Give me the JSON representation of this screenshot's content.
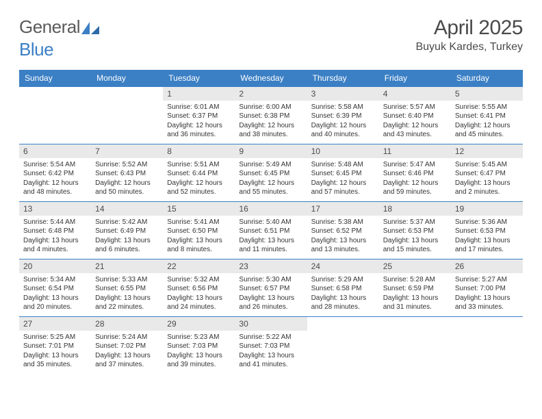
{
  "logo": {
    "word1": "General",
    "word2": "Blue"
  },
  "title": "April 2025",
  "location": "Buyuk Kardes, Turkey",
  "colors": {
    "header_bg": "#3b7fc4",
    "header_fg": "#ffffff",
    "daynum_bg": "#e9e9e9",
    "border": "#3b7fc4",
    "text": "#333333",
    "logo_gray": "#5a5a5a",
    "logo_blue": "#3b7fc4"
  },
  "weekdays": [
    "Sunday",
    "Monday",
    "Tuesday",
    "Wednesday",
    "Thursday",
    "Friday",
    "Saturday"
  ],
  "weeks": [
    [
      null,
      null,
      {
        "n": "1",
        "sr": "Sunrise: 6:01 AM",
        "ss": "Sunset: 6:37 PM",
        "dl1": "Daylight: 12 hours",
        "dl2": "and 36 minutes."
      },
      {
        "n": "2",
        "sr": "Sunrise: 6:00 AM",
        "ss": "Sunset: 6:38 PM",
        "dl1": "Daylight: 12 hours",
        "dl2": "and 38 minutes."
      },
      {
        "n": "3",
        "sr": "Sunrise: 5:58 AM",
        "ss": "Sunset: 6:39 PM",
        "dl1": "Daylight: 12 hours",
        "dl2": "and 40 minutes."
      },
      {
        "n": "4",
        "sr": "Sunrise: 5:57 AM",
        "ss": "Sunset: 6:40 PM",
        "dl1": "Daylight: 12 hours",
        "dl2": "and 43 minutes."
      },
      {
        "n": "5",
        "sr": "Sunrise: 5:55 AM",
        "ss": "Sunset: 6:41 PM",
        "dl1": "Daylight: 12 hours",
        "dl2": "and 45 minutes."
      }
    ],
    [
      {
        "n": "6",
        "sr": "Sunrise: 5:54 AM",
        "ss": "Sunset: 6:42 PM",
        "dl1": "Daylight: 12 hours",
        "dl2": "and 48 minutes."
      },
      {
        "n": "7",
        "sr": "Sunrise: 5:52 AM",
        "ss": "Sunset: 6:43 PM",
        "dl1": "Daylight: 12 hours",
        "dl2": "and 50 minutes."
      },
      {
        "n": "8",
        "sr": "Sunrise: 5:51 AM",
        "ss": "Sunset: 6:44 PM",
        "dl1": "Daylight: 12 hours",
        "dl2": "and 52 minutes."
      },
      {
        "n": "9",
        "sr": "Sunrise: 5:49 AM",
        "ss": "Sunset: 6:45 PM",
        "dl1": "Daylight: 12 hours",
        "dl2": "and 55 minutes."
      },
      {
        "n": "10",
        "sr": "Sunrise: 5:48 AM",
        "ss": "Sunset: 6:45 PM",
        "dl1": "Daylight: 12 hours",
        "dl2": "and 57 minutes."
      },
      {
        "n": "11",
        "sr": "Sunrise: 5:47 AM",
        "ss": "Sunset: 6:46 PM",
        "dl1": "Daylight: 12 hours",
        "dl2": "and 59 minutes."
      },
      {
        "n": "12",
        "sr": "Sunrise: 5:45 AM",
        "ss": "Sunset: 6:47 PM",
        "dl1": "Daylight: 13 hours",
        "dl2": "and 2 minutes."
      }
    ],
    [
      {
        "n": "13",
        "sr": "Sunrise: 5:44 AM",
        "ss": "Sunset: 6:48 PM",
        "dl1": "Daylight: 13 hours",
        "dl2": "and 4 minutes."
      },
      {
        "n": "14",
        "sr": "Sunrise: 5:42 AM",
        "ss": "Sunset: 6:49 PM",
        "dl1": "Daylight: 13 hours",
        "dl2": "and 6 minutes."
      },
      {
        "n": "15",
        "sr": "Sunrise: 5:41 AM",
        "ss": "Sunset: 6:50 PM",
        "dl1": "Daylight: 13 hours",
        "dl2": "and 8 minutes."
      },
      {
        "n": "16",
        "sr": "Sunrise: 5:40 AM",
        "ss": "Sunset: 6:51 PM",
        "dl1": "Daylight: 13 hours",
        "dl2": "and 11 minutes."
      },
      {
        "n": "17",
        "sr": "Sunrise: 5:38 AM",
        "ss": "Sunset: 6:52 PM",
        "dl1": "Daylight: 13 hours",
        "dl2": "and 13 minutes."
      },
      {
        "n": "18",
        "sr": "Sunrise: 5:37 AM",
        "ss": "Sunset: 6:53 PM",
        "dl1": "Daylight: 13 hours",
        "dl2": "and 15 minutes."
      },
      {
        "n": "19",
        "sr": "Sunrise: 5:36 AM",
        "ss": "Sunset: 6:53 PM",
        "dl1": "Daylight: 13 hours",
        "dl2": "and 17 minutes."
      }
    ],
    [
      {
        "n": "20",
        "sr": "Sunrise: 5:34 AM",
        "ss": "Sunset: 6:54 PM",
        "dl1": "Daylight: 13 hours",
        "dl2": "and 20 minutes."
      },
      {
        "n": "21",
        "sr": "Sunrise: 5:33 AM",
        "ss": "Sunset: 6:55 PM",
        "dl1": "Daylight: 13 hours",
        "dl2": "and 22 minutes."
      },
      {
        "n": "22",
        "sr": "Sunrise: 5:32 AM",
        "ss": "Sunset: 6:56 PM",
        "dl1": "Daylight: 13 hours",
        "dl2": "and 24 minutes."
      },
      {
        "n": "23",
        "sr": "Sunrise: 5:30 AM",
        "ss": "Sunset: 6:57 PM",
        "dl1": "Daylight: 13 hours",
        "dl2": "and 26 minutes."
      },
      {
        "n": "24",
        "sr": "Sunrise: 5:29 AM",
        "ss": "Sunset: 6:58 PM",
        "dl1": "Daylight: 13 hours",
        "dl2": "and 28 minutes."
      },
      {
        "n": "25",
        "sr": "Sunrise: 5:28 AM",
        "ss": "Sunset: 6:59 PM",
        "dl1": "Daylight: 13 hours",
        "dl2": "and 31 minutes."
      },
      {
        "n": "26",
        "sr": "Sunrise: 5:27 AM",
        "ss": "Sunset: 7:00 PM",
        "dl1": "Daylight: 13 hours",
        "dl2": "and 33 minutes."
      }
    ],
    [
      {
        "n": "27",
        "sr": "Sunrise: 5:25 AM",
        "ss": "Sunset: 7:01 PM",
        "dl1": "Daylight: 13 hours",
        "dl2": "and 35 minutes."
      },
      {
        "n": "28",
        "sr": "Sunrise: 5:24 AM",
        "ss": "Sunset: 7:02 PM",
        "dl1": "Daylight: 13 hours",
        "dl2": "and 37 minutes."
      },
      {
        "n": "29",
        "sr": "Sunrise: 5:23 AM",
        "ss": "Sunset: 7:03 PM",
        "dl1": "Daylight: 13 hours",
        "dl2": "and 39 minutes."
      },
      {
        "n": "30",
        "sr": "Sunrise: 5:22 AM",
        "ss": "Sunset: 7:03 PM",
        "dl1": "Daylight: 13 hours",
        "dl2": "and 41 minutes."
      },
      null,
      null,
      null
    ]
  ]
}
